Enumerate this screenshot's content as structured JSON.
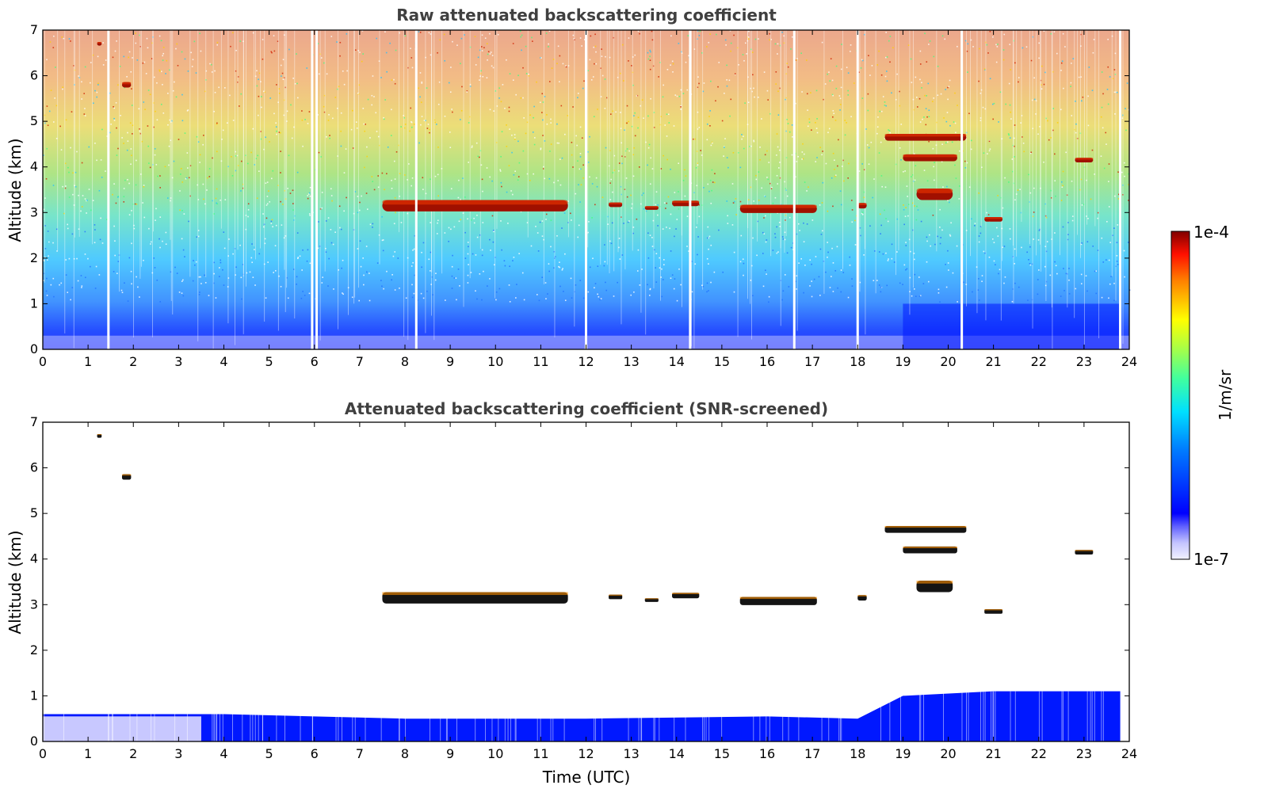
{
  "chart_data": [
    {
      "type": "heatmap",
      "title": "Raw attenuated backscattering coefficient",
      "xlabel": "",
      "ylabel": "Altitude (km)",
      "xlim": [
        0,
        24
      ],
      "ylim": [
        0,
        7
      ],
      "xticks": [
        "0",
        "1",
        "2",
        "3",
        "4",
        "5",
        "6",
        "7",
        "8",
        "9",
        "10",
        "11",
        "12",
        "13",
        "14",
        "15",
        "16",
        "17",
        "18",
        "19",
        "20",
        "21",
        "22",
        "23",
        "24"
      ],
      "yticks": [
        "0",
        "1",
        "2",
        "3",
        "4",
        "5",
        "6",
        "7"
      ],
      "grid": false,
      "features": {
        "boundary_layer_top_km": [
          {
            "x": 0,
            "y": 0.6
          },
          {
            "x": 4,
            "y": 0.6
          },
          {
            "x": 8,
            "y": 0.5
          },
          {
            "x": 12,
            "y": 0.5
          },
          {
            "x": 16,
            "y": 0.55
          },
          {
            "x": 18,
            "y": 0.5
          },
          {
            "x": 19,
            "y": 1.0
          },
          {
            "x": 21,
            "y": 1.1
          },
          {
            "x": 24,
            "y": 1.1
          }
        ],
        "cloud_layers": [
          {
            "x_start": 7.5,
            "x_end": 11.6,
            "y_center": 3.15,
            "thickness": 0.25
          },
          {
            "x_start": 12.5,
            "x_end": 12.8,
            "y_center": 3.17,
            "thickness": 0.1
          },
          {
            "x_start": 13.3,
            "x_end": 13.6,
            "y_center": 3.1,
            "thickness": 0.08
          },
          {
            "x_start": 13.9,
            "x_end": 14.5,
            "y_center": 3.2,
            "thickness": 0.12
          },
          {
            "x_start": 15.4,
            "x_end": 17.1,
            "y_center": 3.08,
            "thickness": 0.18
          },
          {
            "x_start": 18.0,
            "x_end": 18.2,
            "y_center": 3.15,
            "thickness": 0.12
          },
          {
            "x_start": 18.6,
            "x_end": 20.4,
            "y_center": 4.65,
            "thickness": 0.15
          },
          {
            "x_start": 19.0,
            "x_end": 20.2,
            "y_center": 4.2,
            "thickness": 0.15
          },
          {
            "x_start": 19.3,
            "x_end": 20.1,
            "y_center": 3.4,
            "thickness": 0.25
          },
          {
            "x_start": 20.8,
            "x_end": 21.2,
            "y_center": 2.85,
            "thickness": 0.1
          },
          {
            "x_start": 22.8,
            "x_end": 23.2,
            "y_center": 4.15,
            "thickness": 0.1
          },
          {
            "x_start": 1.2,
            "x_end": 1.3,
            "y_center": 6.7,
            "thickness": 0.08
          },
          {
            "x_start": 1.75,
            "x_end": 1.95,
            "y_center": 5.8,
            "thickness": 0.12
          }
        ],
        "data_gaps_hours": [
          1.45,
          5.95,
          6.05,
          8.25,
          12.0,
          14.3,
          16.6,
          18.0,
          20.3,
          23.8
        ]
      }
    },
    {
      "type": "heatmap",
      "title": "Attenuated backscattering coefficient (SNR-screened)",
      "xlabel": "Time (UTC)",
      "ylabel": "Altitude (km)",
      "xlim": [
        0,
        24
      ],
      "ylim": [
        0,
        7
      ],
      "xticks": [
        "0",
        "1",
        "2",
        "3",
        "4",
        "5",
        "6",
        "7",
        "8",
        "9",
        "10",
        "11",
        "12",
        "13",
        "14",
        "15",
        "16",
        "17",
        "18",
        "19",
        "20",
        "21",
        "22",
        "23",
        "24"
      ],
      "yticks": [
        "0",
        "1",
        "2",
        "3",
        "4",
        "5",
        "6",
        "7"
      ],
      "grid": false
    }
  ],
  "colorbar": {
    "label": "1/m/sr",
    "max_label": "1e-4",
    "min_label": "1e-7",
    "colormap": "jet",
    "scale": "log",
    "range": [
      1e-07,
      0.0001
    ]
  }
}
